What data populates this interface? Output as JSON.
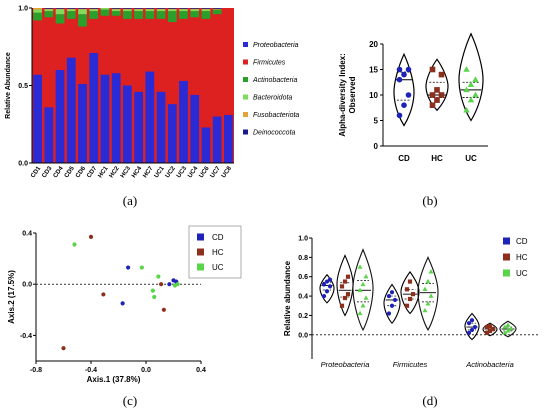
{
  "panels": {
    "a": "(a)",
    "b": "(b)",
    "c": "(c)",
    "d": "(d)"
  },
  "colors": {
    "Proteobacteria": "#2b2bd6",
    "Firmicutes": "#dd2020",
    "Actinobacteria": "#2aa02a",
    "Bacteroidota": "#7fdc5a",
    "Fusobacteriota": "#e3a23a",
    "Deinococcota": "#1a1a8c",
    "CD": "#1e22b8",
    "HC": "#8c2f1c",
    "UC": "#5ad44a"
  },
  "chart_data": [
    {
      "id": "a",
      "type": "bar",
      "stacked": true,
      "ylabel": "Relative Abundance",
      "ylim": [
        0,
        1
      ],
      "yticks": [
        "0.0",
        "0.5",
        "1.0"
      ],
      "categories": [
        "CD1",
        "CD3",
        "CD4",
        "CD5",
        "CD6",
        "CD7",
        "HC1",
        "HC2",
        "HC3",
        "HC4",
        "HC7",
        "UC1",
        "UC2",
        "UC3",
        "UC4",
        "UC6",
        "UC7",
        "UC8"
      ],
      "category_colors": {
        "CD1": "#e8207a",
        "HC1": "#d11a1a",
        "CD3": "#1e22b8"
      },
      "legend": [
        "Proteobacteria",
        "Firmicutes",
        "Actinobacteria",
        "Bacteroidota",
        "Fusobacteriota",
        "Deinococcota"
      ],
      "series": [
        {
          "name": "Proteobacteria",
          "values": [
            0.57,
            0.36,
            0.6,
            0.68,
            0.51,
            0.71,
            0.57,
            0.58,
            0.5,
            0.46,
            0.59,
            0.46,
            0.38,
            0.53,
            0.44,
            0.23,
            0.3,
            0.31
          ]
        },
        {
          "name": "Firmicutes",
          "values": [
            0.35,
            0.58,
            0.3,
            0.25,
            0.37,
            0.22,
            0.38,
            0.37,
            0.43,
            0.47,
            0.34,
            0.47,
            0.53,
            0.4,
            0.5,
            0.7,
            0.66,
            0.69
          ]
        },
        {
          "name": "Actinobacteria",
          "values": [
            0.05,
            0.04,
            0.06,
            0.05,
            0.08,
            0.05,
            0.04,
            0.03,
            0.05,
            0.05,
            0.05,
            0.05,
            0.07,
            0.05,
            0.04,
            0.05,
            0.03,
            0.0
          ]
        },
        {
          "name": "Bacteroidota",
          "values": [
            0.02,
            0.01,
            0.03,
            0.01,
            0.03,
            0.01,
            0.01,
            0.01,
            0.01,
            0.01,
            0.01,
            0.01,
            0.01,
            0.01,
            0.01,
            0.01,
            0.0,
            0.0
          ]
        },
        {
          "name": "Fusobacteriota",
          "values": [
            0.01,
            0.005,
            0.005,
            0.005,
            0.005,
            0.005,
            0,
            0.005,
            0.005,
            0.005,
            0.005,
            0.005,
            0.005,
            0.005,
            0.005,
            0.005,
            0.005,
            0
          ]
        },
        {
          "name": "Deinococcota",
          "values": [
            0,
            0.005,
            0.005,
            0.005,
            0.005,
            0.005,
            0,
            0.005,
            0.005,
            0.005,
            0.005,
            0.005,
            0.005,
            0.005,
            0.005,
            0.005,
            0.005,
            0
          ]
        }
      ]
    },
    {
      "id": "b",
      "type": "violin",
      "ylabel": "Alpha-diversity Index:",
      "ylabel2": "Observed",
      "ylim": [
        0,
        20
      ],
      "yticks": [
        "0",
        "5",
        "10",
        "15",
        "20"
      ],
      "categories": [
        "CD",
        "HC",
        "UC"
      ],
      "groups": [
        {
          "name": "CD",
          "shape": "circle",
          "points": [
            6,
            8,
            10,
            13,
            14,
            15,
            15
          ]
        },
        {
          "name": "HC",
          "shape": "square",
          "points": [
            8,
            9,
            10,
            10,
            11,
            14,
            15
          ]
        },
        {
          "name": "UC",
          "shape": "triangle",
          "points": [
            7,
            9,
            10,
            11,
            12,
            13,
            15
          ]
        }
      ]
    },
    {
      "id": "c",
      "type": "scatter",
      "xlabel": "Axis.1 (37.8%)",
      "ylabel": "Axis.2 (17.5%)",
      "xlim": [
        -0.8,
        0.4
      ],
      "ylim": [
        -0.6,
        0.4
      ],
      "xticks": [
        "-0.8",
        "-0.4",
        "0.0",
        "0.4"
      ],
      "yticks": [
        "-0.4",
        "0.0",
        "0.4"
      ],
      "legend": [
        "CD",
        "HC",
        "UC"
      ],
      "points": [
        {
          "g": "HC",
          "x": -0.6,
          "y": -0.5
        },
        {
          "g": "HC",
          "x": -0.4,
          "y": 0.37
        },
        {
          "g": "UC",
          "x": -0.52,
          "y": 0.31
        },
        {
          "g": "HC",
          "x": -0.31,
          "y": -0.08
        },
        {
          "g": "CD",
          "x": -0.17,
          "y": -0.15
        },
        {
          "g": "CD",
          "x": -0.13,
          "y": 0.13
        },
        {
          "g": "UC",
          "x": -0.03,
          "y": 0.13
        },
        {
          "g": "UC",
          "x": 0.05,
          "y": -0.05
        },
        {
          "g": "UC",
          "x": 0.06,
          "y": -0.1
        },
        {
          "g": "HC",
          "x": 0.11,
          "y": 0.0
        },
        {
          "g": "UC",
          "x": 0.09,
          "y": 0.06
        },
        {
          "g": "HC",
          "x": 0.13,
          "y": -0.2
        },
        {
          "g": "CD",
          "x": 0.17,
          "y": 0.0
        },
        {
          "g": "CD",
          "x": 0.2,
          "y": 0.03
        },
        {
          "g": "CD",
          "x": 0.22,
          "y": 0.02
        },
        {
          "g": "UC",
          "x": 0.21,
          "y": -0.01
        },
        {
          "g": "UC",
          "x": 0.23,
          "y": 0.0
        }
      ]
    },
    {
      "id": "d",
      "type": "violin",
      "ylabel": "Relative abundance",
      "ylim": [
        -0.25,
        1.0
      ],
      "yticks": [
        "0.0",
        "0.2",
        "0.4",
        "0.6",
        "0.8",
        "1.0"
      ],
      "categories": [
        "Proteobacteria",
        "Firmicutes",
        "Actinobacteria"
      ],
      "legend": [
        "CD",
        "HC",
        "UC"
      ],
      "groups": [
        {
          "cat": "Proteobacteria",
          "name": "CD",
          "lo": 0.33,
          "hi": 0.62,
          "points": [
            0.4,
            0.45,
            0.5,
            0.52,
            0.55,
            0.57
          ]
        },
        {
          "cat": "Proteobacteria",
          "name": "HC",
          "lo": 0.2,
          "hi": 0.82,
          "points": [
            0.3,
            0.38,
            0.42,
            0.5,
            0.55,
            0.6
          ]
        },
        {
          "cat": "Proteobacteria",
          "name": "UC",
          "lo": 0.05,
          "hi": 0.88,
          "points": [
            0.22,
            0.3,
            0.38,
            0.46,
            0.52,
            0.6,
            0.7
          ]
        },
        {
          "cat": "Firmicutes",
          "name": "CD",
          "lo": 0.12,
          "hi": 0.52,
          "points": [
            0.22,
            0.3,
            0.36,
            0.4,
            0.44
          ]
        },
        {
          "cat": "Firmicutes",
          "name": "HC",
          "lo": 0.22,
          "hi": 0.65,
          "points": [
            0.3,
            0.37,
            0.42,
            0.47,
            0.55
          ]
        },
        {
          "cat": "Firmicutes",
          "name": "UC",
          "lo": 0.05,
          "hi": 0.8,
          "points": [
            0.25,
            0.32,
            0.4,
            0.47,
            0.55,
            0.65
          ]
        },
        {
          "cat": "Actinobacteria",
          "name": "CD",
          "lo": -0.05,
          "hi": 0.22,
          "points": [
            0.02,
            0.05,
            0.08,
            0.12,
            0.15
          ]
        },
        {
          "cat": "Actinobacteria",
          "name": "HC",
          "lo": -0.01,
          "hi": 0.12,
          "points": [
            0.02,
            0.04,
            0.06,
            0.08,
            0.09
          ]
        },
        {
          "cat": "Actinobacteria",
          "name": "UC",
          "lo": -0.02,
          "hi": 0.14,
          "points": [
            0.02,
            0.04,
            0.06,
            0.08,
            0.1
          ]
        }
      ]
    }
  ]
}
